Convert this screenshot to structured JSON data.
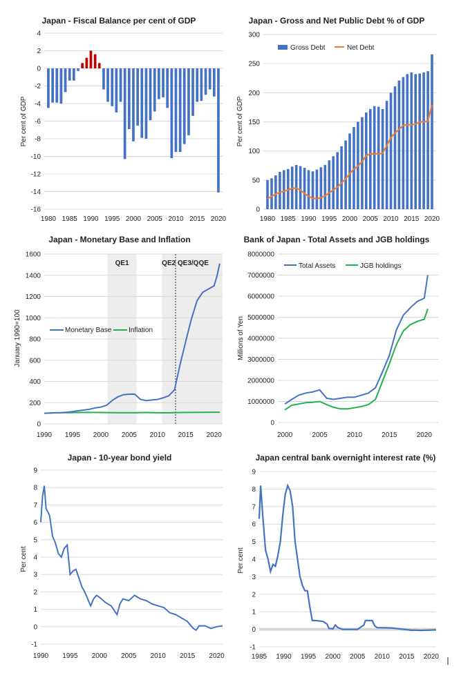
{
  "colors": {
    "blue": "#4472C4",
    "red": "#C00000",
    "orange": "#ED7D31",
    "green": "#22B14C",
    "shade": "#EDEDED",
    "grid": "#D9D9D9"
  },
  "chart_data": [
    {
      "id": "fiscal",
      "type": "bar",
      "title": "Japan - Fiscal Balance per cent of GDP",
      "ylabel": "Per cent of GDP",
      "xlabel": "",
      "ylim": [
        -16,
        4
      ],
      "yticks": [
        4,
        2,
        0,
        -2,
        -4,
        -6,
        -8,
        -10,
        -12,
        -14,
        -16
      ],
      "xlim": [
        1980,
        2020
      ],
      "xticks": [
        1980,
        1985,
        1990,
        1995,
        2000,
        2005,
        2010,
        2015,
        2020
      ],
      "grid": true,
      "x": [
        1980,
        1981,
        1982,
        1983,
        1984,
        1985,
        1986,
        1987,
        1988,
        1989,
        1990,
        1991,
        1992,
        1993,
        1994,
        1995,
        1996,
        1997,
        1998,
        1999,
        2000,
        2001,
        2002,
        2003,
        2004,
        2005,
        2006,
        2007,
        2008,
        2009,
        2010,
        2011,
        2012,
        2013,
        2014,
        2015,
        2016,
        2017,
        2018,
        2019,
        2020
      ],
      "values": [
        -4.5,
        -3.9,
        -3.9,
        -4,
        -2.7,
        -1.4,
        -1.4,
        -0.3,
        0.6,
        1.2,
        2,
        1.6,
        0.6,
        -2.4,
        -3.8,
        -4.3,
        -5,
        -3.8,
        -10.3,
        -6.9,
        -8.3,
        -6.5,
        -7.9,
        -8,
        -5.9,
        -4.9,
        -3.5,
        -3.3,
        -4.5,
        -10.2,
        -9.5,
        -9.5,
        -8.6,
        -7.6,
        -5.4,
        -3.8,
        -3.7,
        -3,
        -2.4,
        -3.2,
        -14.1
      ],
      "colors_rule": "positive bars red, negative bars blue"
    },
    {
      "id": "debt",
      "type": "bar",
      "title": "Japan - Gross and Net Public Debt % of GDP",
      "ylabel": "Per cent of GDP",
      "xlabel": "",
      "ylim": [
        0,
        300
      ],
      "yticks": [
        300,
        250,
        200,
        150,
        100,
        50,
        0
      ],
      "xlim": [
        1980,
        2020
      ],
      "xticks": [
        1980,
        1985,
        1990,
        1995,
        2000,
        2005,
        2010,
        2015,
        2020
      ],
      "grid": true,
      "legend_position": "top-left",
      "x": [
        1980,
        1981,
        1982,
        1983,
        1984,
        1985,
        1986,
        1987,
        1988,
        1989,
        1990,
        1991,
        1992,
        1993,
        1994,
        1995,
        1996,
        1997,
        1998,
        1999,
        2000,
        2001,
        2002,
        2003,
        2004,
        2005,
        2006,
        2007,
        2008,
        2009,
        2010,
        2011,
        2012,
        2013,
        2014,
        2015,
        2016,
        2017,
        2018,
        2019,
        2020
      ],
      "series": [
        {
          "name": "Gross Debt",
          "type": "bar",
          "values": [
            50,
            53,
            58,
            64,
            67,
            69,
            73,
            76,
            74,
            71,
            67,
            65,
            68,
            72,
            76,
            84,
            91,
            98,
            108,
            118,
            130,
            141,
            150,
            158,
            166,
            172,
            177,
            176,
            172,
            186,
            200,
            211,
            221,
            227,
            232,
            235,
            232,
            233,
            235,
            237,
            266
          ]
        },
        {
          "name": "Net Debt",
          "type": "line",
          "values": [
            18,
            22,
            26,
            29,
            31,
            33,
            36,
            36,
            33,
            27,
            22,
            19,
            18,
            20,
            23,
            28,
            33,
            38,
            45,
            52,
            61,
            69,
            74,
            82,
            92,
            95,
            95,
            95,
            96,
            109,
            123,
            131,
            137,
            144,
            145,
            145,
            146,
            150,
            150,
            151,
            179
          ]
        }
      ]
    },
    {
      "id": "monetary",
      "type": "line",
      "title": "Japan - Monetary Base and Inflation",
      "ylabel": "January 1990=100",
      "xlabel": "",
      "ylim": [
        0,
        1600
      ],
      "yticks": [
        1600,
        1400,
        1200,
        1000,
        800,
        600,
        400,
        200,
        0
      ],
      "xlim": [
        1990,
        2021.5
      ],
      "xticks": [
        1990,
        1995,
        2000,
        2005,
        2010,
        2015,
        2020
      ],
      "grid": true,
      "legend_position": "middle-left",
      "regions": [
        {
          "label": "QE1",
          "from": 2001.2,
          "to": 2006.3
        },
        {
          "label": "QE2",
          "from": 2010.8,
          "to": 2013.2
        },
        {
          "label": "QE3/QQE",
          "from": 2013.2,
          "to": 2021.5
        }
      ],
      "vline": 2013.2,
      "series": [
        {
          "name": "Monetary Base",
          "x": [
            1990,
            1991,
            1992,
            1993,
            1994,
            1995,
            1996,
            1997,
            1998,
            1999,
            2000,
            2001,
            2002,
            2003,
            2004,
            2005,
            2006,
            2007,
            2008,
            2009,
            2010,
            2011,
            2012,
            2013,
            2014,
            2015,
            2016,
            2017,
            2018,
            2019,
            2020,
            2020.5,
            2021
          ],
          "y": [
            100,
            102,
            104,
            106,
            110,
            116,
            124,
            130,
            138,
            150,
            158,
            175,
            220,
            255,
            275,
            280,
            280,
            230,
            220,
            225,
            230,
            245,
            265,
            320,
            560,
            780,
            990,
            1160,
            1240,
            1270,
            1300,
            1390,
            1510
          ]
        },
        {
          "name": "Inflation",
          "x": [
            1990,
            1992,
            1994,
            1996,
            1998,
            2000,
            2002,
            2004,
            2006,
            2008,
            2010,
            2012,
            2014,
            2016,
            2018,
            2020,
            2021
          ],
          "y": [
            100,
            104,
            106,
            107,
            108,
            107,
            106,
            105,
            105,
            107,
            105,
            104,
            107,
            108,
            109,
            110,
            110
          ]
        }
      ]
    },
    {
      "id": "boj",
      "type": "line",
      "title": "Bank of Japan - Total Assets and JGB holdings",
      "ylabel": "Millions of Yen",
      "xlabel": "",
      "ylim": [
        0,
        8000000
      ],
      "yticks": [
        8000000,
        7000000,
        6000000,
        5000000,
        4000000,
        3000000,
        2000000,
        1000000,
        0
      ],
      "xlim": [
        1999,
        2022
      ],
      "xticks": [
        2000,
        2005,
        2010,
        2015,
        2020
      ],
      "grid": true,
      "legend_position": "top-left",
      "series": [
        {
          "name": "Total Assets",
          "x": [
            2000,
            2001,
            2002,
            2003,
            2004,
            2005,
            2006,
            2007,
            2008,
            2009,
            2010,
            2011,
            2012,
            2013,
            2014,
            2015,
            2016,
            2017,
            2018,
            2019,
            2020,
            2020.5
          ],
          "y": [
            880000,
            1100000,
            1300000,
            1400000,
            1450000,
            1550000,
            1150000,
            1100000,
            1150000,
            1200000,
            1200000,
            1300000,
            1400000,
            1650000,
            2400000,
            3200000,
            4400000,
            5100000,
            5450000,
            5750000,
            5900000,
            7000000
          ]
        },
        {
          "name": "JGB holdings",
          "x": [
            2000,
            2001,
            2002,
            2003,
            2004,
            2005,
            2006,
            2007,
            2008,
            2009,
            2010,
            2011,
            2012,
            2013,
            2014,
            2015,
            2016,
            2017,
            2018,
            2019,
            2020,
            2020.5
          ],
          "y": [
            600000,
            820000,
            880000,
            940000,
            960000,
            1000000,
            850000,
            720000,
            650000,
            650000,
            700000,
            760000,
            850000,
            1100000,
            1950000,
            2800000,
            3700000,
            4350000,
            4650000,
            4800000,
            4900000,
            5400000
          ]
        }
      ]
    },
    {
      "id": "bond",
      "type": "line",
      "title": "Japan - 10-year bond yield",
      "ylabel": "Per cent",
      "xlabel": "",
      "ylim": [
        -1,
        9
      ],
      "yticks": [
        9,
        8,
        7,
        6,
        5,
        4,
        3,
        2,
        1,
        0,
        -1
      ],
      "xlim": [
        1990,
        2021
      ],
      "xticks": [
        1990,
        1995,
        2000,
        2005,
        2010,
        2015,
        2020
      ],
      "grid": true,
      "series": [
        {
          "name": "",
          "x": [
            1990,
            1990.3,
            1990.6,
            1990.9,
            1991.2,
            1991.5,
            1992,
            1992.5,
            1993,
            1993.5,
            1994,
            1994.5,
            1995,
            1995.5,
            1996,
            1996.5,
            1997,
            1997.5,
            1998,
            1998.5,
            1999,
            1999.5,
            2000,
            2001,
            2002,
            2003,
            2003.5,
            2004,
            2005,
            2006,
            2007,
            2008,
            2009,
            2010,
            2011,
            2012,
            2013,
            2014,
            2015,
            2016,
            2016.5,
            2017,
            2018,
            2019,
            2020,
            2021
          ],
          "y": [
            6,
            7.5,
            8.1,
            6.8,
            6.6,
            6.4,
            5.2,
            4.8,
            4.2,
            4.0,
            4.5,
            4.7,
            3.0,
            3.2,
            3.3,
            2.8,
            2.3,
            2.0,
            1.6,
            1.2,
            1.6,
            1.8,
            1.7,
            1.4,
            1.2,
            0.7,
            1.3,
            1.6,
            1.5,
            1.8,
            1.6,
            1.5,
            1.3,
            1.2,
            1.1,
            0.8,
            0.7,
            0.5,
            0.3,
            -0.1,
            -0.2,
            0.05,
            0.05,
            -0.1,
            0.0,
            0.05
          ]
        }
      ]
    },
    {
      "id": "overnight",
      "type": "line",
      "title": "Japan central bank overnight interest rate (%)",
      "ylabel": "Per cent",
      "xlabel": "",
      "ylim": [
        -1,
        9
      ],
      "yticks": [
        9,
        8,
        7,
        6,
        5,
        4,
        3,
        2,
        1,
        0,
        -1
      ],
      "xlim": [
        1985,
        2021
      ],
      "xticks": [
        1985,
        1990,
        1995,
        2000,
        2005,
        2010,
        2015,
        2020
      ],
      "grid": true,
      "series": [
        {
          "name": "",
          "x": [
            1985,
            1985.3,
            1985.8,
            1986.3,
            1986.8,
            1987.3,
            1987.8,
            1988.3,
            1988.8,
            1989.3,
            1989.8,
            1990.3,
            1990.8,
            1991.3,
            1991.8,
            1992.3,
            1992.8,
            1993.3,
            1993.8,
            1994.3,
            1994.8,
            1995.3,
            1995.8,
            1996.5,
            1998,
            1998.8,
            1999.2,
            2000,
            2000.5,
            2001,
            2002,
            2005,
            2006.3,
            2006.6,
            2007,
            2008,
            2008.5,
            2009,
            2012,
            2016,
            2017,
            2018,
            2020,
            2021
          ],
          "y": [
            6.3,
            8.2,
            6.2,
            4.5,
            4.0,
            3.3,
            3.7,
            3.6,
            4.2,
            5.0,
            6.5,
            7.7,
            8.2,
            7.9,
            7.0,
            5.0,
            4.0,
            3.0,
            2.5,
            2.2,
            2.2,
            1.3,
            0.5,
            0.5,
            0.45,
            0.3,
            0.05,
            0.03,
            0.25,
            0.1,
            0.0,
            0.0,
            0.25,
            0.5,
            0.5,
            0.5,
            0.2,
            0.1,
            0.08,
            -0.05,
            -0.05,
            -0.06,
            -0.04,
            -0.03
          ]
        }
      ]
    }
  ]
}
